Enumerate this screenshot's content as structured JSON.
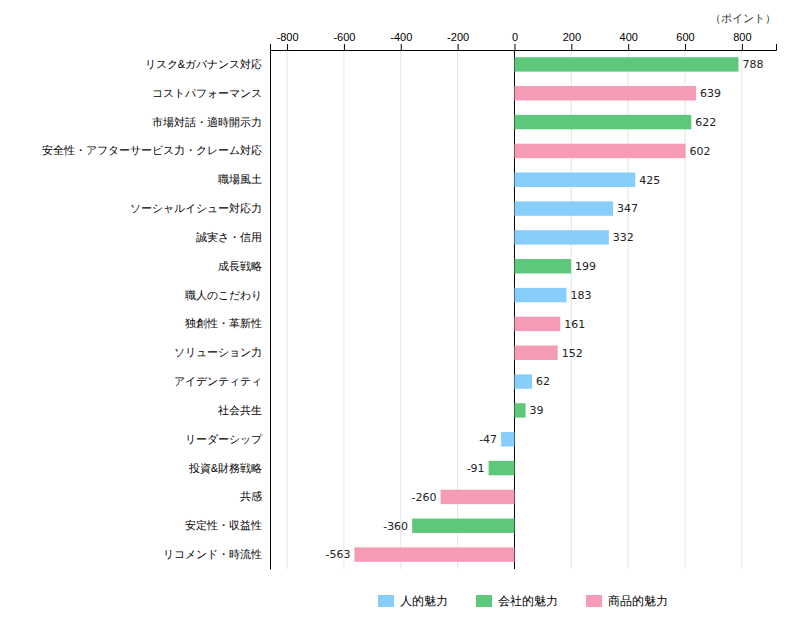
{
  "chart_data": {
    "type": "bar",
    "orientation": "horizontal",
    "stacked": true,
    "x_label": "（ポイント）",
    "categories": [
      "リスク&ガバナンス対応",
      "コストパフォーマンス",
      "市場対話・適時開示力",
      "安全性・アフターサービス力・クレーム対応",
      "職場風土",
      "ソーシャルイシュー対応力",
      "誠実さ・信用",
      "成長戦略",
      "職人のこだわり",
      "独創性・革新性",
      "ソリューション力",
      "アイデンティティ",
      "社会共生",
      "リーダーシップ",
      "投資&財務戦略",
      "共感",
      "安定性・収益性",
      "リコメンド・時流性"
    ],
    "series": [
      {
        "name": "人的魅力",
        "color": "#87cefa",
        "values": [
          null,
          null,
          null,
          null,
          425,
          347,
          332,
          null,
          183,
          null,
          null,
          62,
          null,
          -47,
          null,
          null,
          null,
          null
        ]
      },
      {
        "name": "会社的魅力",
        "color": "#5ec87a",
        "values": [
          788,
          null,
          622,
          null,
          null,
          null,
          null,
          199,
          null,
          null,
          null,
          null,
          39,
          null,
          -91,
          null,
          -360,
          null
        ]
      },
      {
        "name": "商品的魅力",
        "color": "#f59bb5",
        "values": [
          null,
          639,
          null,
          602,
          null,
          null,
          null,
          null,
          null,
          161,
          152,
          null,
          null,
          null,
          null,
          -260,
          null,
          -563
        ]
      }
    ],
    "xlim": [
      -860,
      920
    ],
    "xticks": [
      -800,
      -600,
      -400,
      -200,
      0,
      200,
      400,
      600,
      800
    ],
    "grid": true,
    "legend": "bottom",
    "data_labels": true
  }
}
